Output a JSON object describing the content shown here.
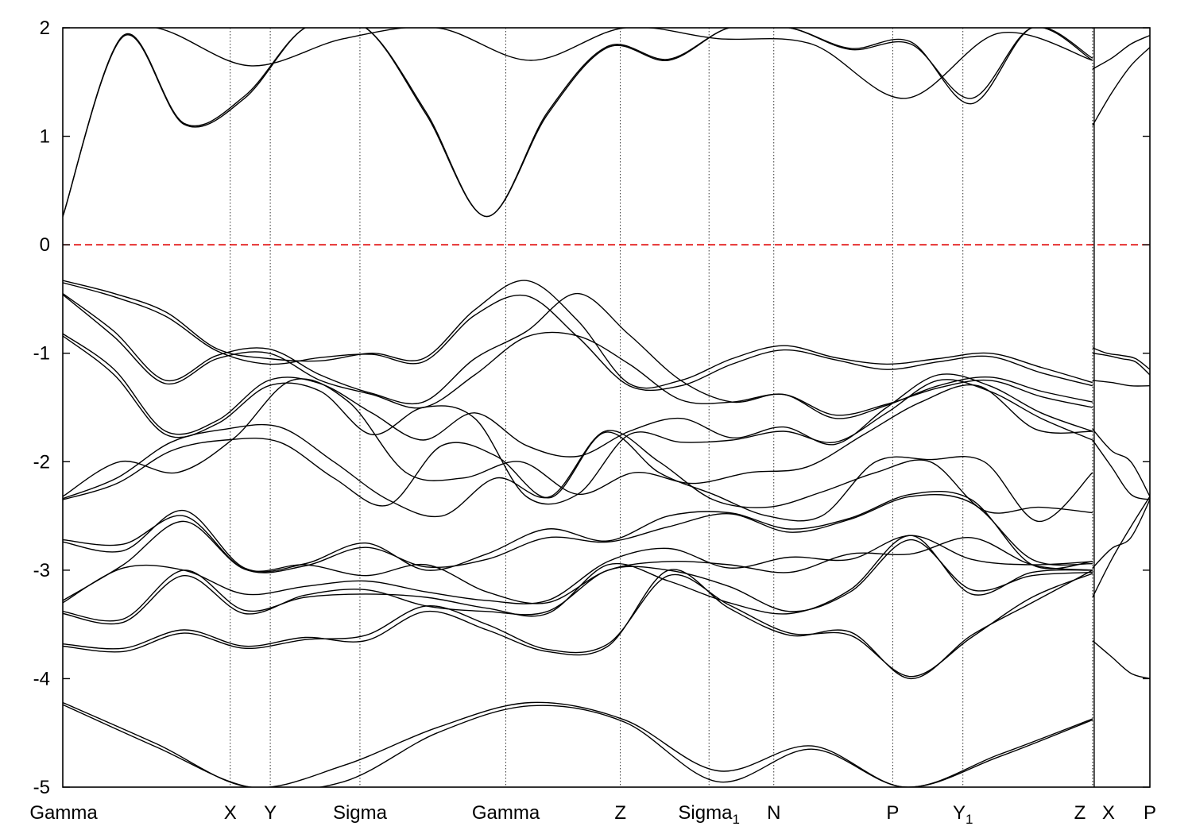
{
  "chart_data": {
    "type": "line",
    "title": "",
    "xlabel": "",
    "ylabel": "",
    "ylim": [
      -5,
      2
    ],
    "xlim": [
      0,
      10.06
    ],
    "y_ticks": [
      2,
      1,
      0,
      -1,
      -2,
      -3,
      -4,
      -5
    ],
    "grid": "vertical dotted lines at high-symmetry points",
    "legend": "none",
    "fermi_level": {
      "y": 0,
      "style": "dashed",
      "color": "#e00000"
    },
    "line_color": "#000000",
    "kpoints": [
      {
        "label": "Gamma",
        "sub": "",
        "x": 0.0
      },
      {
        "label": "X",
        "sub": "",
        "x": 1.55
      },
      {
        "label": "Y",
        "sub": "",
        "x": 1.92
      },
      {
        "label": "Sigma",
        "sub": "",
        "x": 2.75
      },
      {
        "label": "Gamma",
        "sub": "",
        "x": 4.1
      },
      {
        "label": "Z",
        "sub": "",
        "x": 5.16
      },
      {
        "label": "Sigma",
        "sub": "1",
        "x": 5.98
      },
      {
        "label": "N",
        "sub": "",
        "x": 6.58
      },
      {
        "label": "P",
        "sub": "",
        "x": 7.68
      },
      {
        "label": "Y",
        "sub": "1",
        "x": 8.33
      },
      {
        "label": "Z",
        "sub": "",
        "x": 9.53
      },
      {
        "label": "X",
        "sub": "",
        "x": 9.53
      },
      {
        "label": "P",
        "sub": "",
        "x": 10.06
      }
    ],
    "series": [
      {
        "values": [
          0.26,
          1.92,
          1.11,
          1.35,
          2.0,
          2.0,
          1.2,
          0.26,
          1.2,
          1.82,
          1.7,
          2.0,
          2.0,
          1.8,
          1.85,
          1.35,
          2.0,
          1.7
        ]
      },
      {
        "values": [
          0.26,
          1.93,
          1.12,
          1.37,
          2.0,
          2.0,
          1.22,
          0.26,
          1.22,
          1.83,
          1.71,
          2.0,
          2.0,
          1.81,
          1.87,
          1.3,
          2.0,
          1.72
        ]
      },
      {
        "values": [
          2.0,
          2.0,
          1.65,
          1.9,
          2.0,
          1.7,
          2.0,
          1.9,
          1.85,
          1.35,
          1.95,
          1.7
        ]
      },
      {
        "values": [
          -0.33,
          -0.45,
          -0.62,
          -0.96,
          -1.05,
          -1.07,
          -1.0,
          -1.05,
          -0.6,
          -0.33,
          -0.7,
          -1.28,
          -1.25,
          -1.05,
          -0.93,
          -1.04,
          -1.1,
          -1.05,
          -1.0,
          -1.13,
          -1.27
        ]
      },
      {
        "values": [
          -0.35,
          -0.48,
          -0.66,
          -0.98,
          -1.1,
          -1.04,
          -1.01,
          -1.08,
          -0.65,
          -0.47,
          -0.85,
          -1.3,
          -1.3,
          -1.1,
          -0.97,
          -1.06,
          -1.15,
          -1.08,
          -1.03,
          -1.18,
          -1.3
        ]
      },
      {
        "values": [
          -0.45,
          -0.8,
          -1.25,
          -1.02,
          -0.96,
          -1.2,
          -1.37,
          -1.45,
          -1.05,
          -0.8,
          -0.45,
          -0.83,
          -1.25,
          -1.45,
          -1.38,
          -1.6,
          -1.48,
          -1.3,
          -1.22,
          -1.35,
          -1.45
        ]
      },
      {
        "values": [
          -0.46,
          -0.85,
          -1.28,
          -1.05,
          -1.0,
          -1.25,
          -1.38,
          -1.5,
          -1.2,
          -0.85,
          -0.84,
          -1.1,
          -1.43,
          -1.45,
          -1.38,
          -1.57,
          -1.47,
          -1.32,
          -1.25,
          -1.4,
          -1.5
        ]
      },
      {
        "values": [
          -0.82,
          -1.15,
          -1.72,
          -1.62,
          -1.25,
          -1.28,
          -1.55,
          -1.8,
          -1.55,
          -1.85,
          -1.95,
          -1.72,
          -1.6,
          -1.78,
          -1.68,
          -1.84,
          -1.5,
          -1.2,
          -1.3,
          -1.55,
          -1.72
        ]
      },
      {
        "values": [
          -0.84,
          -1.2,
          -1.75,
          -1.65,
          -1.3,
          -1.35,
          -1.75,
          -1.5,
          -1.6,
          -2.32,
          -2.3,
          -1.75,
          -1.82,
          -1.8,
          -1.72,
          -1.82,
          -1.55,
          -1.25,
          -1.35,
          -1.6,
          -1.8
        ]
      },
      {
        "values": [
          -2.32,
          -2.0,
          -2.1,
          -1.78,
          -1.25,
          -1.45,
          -2.1,
          -2.15,
          -2.0,
          -2.3,
          -2.1,
          -2.2,
          -2.1,
          -2.05,
          -1.75,
          -1.45,
          -1.3,
          -1.7,
          -1.72
        ]
      },
      {
        "values": [
          -2.34,
          -2.15,
          -1.82,
          -1.7,
          -1.68,
          -2.0,
          -2.35,
          -2.5,
          -2.15,
          -2.32,
          -1.72,
          -2.0,
          -2.35,
          -2.42,
          -2.28,
          -2.1,
          -2.0,
          -2.45,
          -2.42,
          -2.47
        ]
      },
      {
        "values": [
          -2.35,
          -2.2,
          -1.9,
          -1.8,
          -1.82,
          -2.15,
          -2.4,
          -1.85,
          -1.95,
          -2.33,
          -1.73,
          -2.1,
          -2.3,
          -2.5,
          -2.5,
          -2.0,
          -1.98,
          -2.0,
          -2.55,
          -2.1
        ]
      },
      {
        "values": [
          -2.74,
          -2.82,
          -2.45,
          -2.98,
          -2.94,
          -2.75,
          -3.0,
          -2.85,
          -2.62,
          -2.73,
          -2.5,
          -2.47,
          -2.62,
          -2.52,
          -2.3,
          -2.35,
          -2.95,
          -2.92
        ]
      },
      {
        "values": [
          -2.72,
          -2.76,
          -2.5,
          -2.99,
          -2.96,
          -2.79,
          -2.97,
          -2.9,
          -2.7,
          -2.74,
          -2.6,
          -2.48,
          -2.65,
          -2.53,
          -2.32,
          -2.38,
          -2.9,
          -2.94
        ]
      },
      {
        "values": [
          -3.28,
          -2.95,
          -2.55,
          -2.99,
          -2.95,
          -3.05,
          -2.95,
          -3.2,
          -3.3,
          -3.0,
          -2.92,
          -2.95,
          -3.02,
          -2.85,
          -2.85,
          -2.7,
          -2.95,
          -3.0
        ]
      },
      {
        "values": [
          -3.3,
          -2.98,
          -3.0,
          -3.22,
          -3.15,
          -3.1,
          -3.2,
          -3.28,
          -3.28,
          -2.92,
          -2.8,
          -2.98,
          -2.88,
          -2.9,
          -2.68,
          -2.9,
          -2.95,
          -2.92
        ]
      },
      {
        "values": [
          -3.38,
          -3.45,
          -3.0,
          -3.37,
          -3.25,
          -3.22,
          -3.25,
          -3.35,
          -3.4,
          -2.95,
          -3.1,
          -3.3,
          -3.4,
          -3.18,
          -2.68,
          -3.22,
          -3.02,
          -3.0
        ]
      },
      {
        "values": [
          -3.4,
          -3.48,
          -3.05,
          -3.4,
          -3.23,
          -3.18,
          -3.33,
          -3.38,
          -3.38,
          -3.0,
          -3.0,
          -3.15,
          -3.38,
          -3.2,
          -2.72,
          -3.18,
          -3.05,
          -3.02
        ]
      },
      {
        "values": [
          -3.68,
          -3.72,
          -3.55,
          -3.7,
          -3.62,
          -3.65,
          -3.38,
          -3.55,
          -3.75,
          -3.7,
          -3.0,
          -3.35,
          -3.6,
          -3.57,
          -4.0,
          -3.6,
          -3.3,
          -3.0
        ]
      },
      {
        "values": [
          -3.7,
          -3.75,
          -3.58,
          -3.72,
          -3.64,
          -3.6,
          -3.33,
          -3.5,
          -3.73,
          -3.68,
          -3.05,
          -3.32,
          -3.58,
          -3.6,
          -3.98,
          -3.62,
          -3.25,
          -3.03
        ]
      },
      {
        "values": [
          -4.22,
          -4.6,
          -5.0,
          -4.8,
          -4.45,
          -4.22,
          -4.38,
          -4.85,
          -4.62,
          -5.0,
          -4.7,
          -4.37
        ]
      },
      {
        "values": [
          -4.24,
          -4.63,
          -5.0,
          -4.95,
          -4.5,
          -4.25,
          -4.4,
          -4.95,
          -4.65,
          -5.0,
          -4.72,
          -4.38
        ]
      },
      {
        "values": [
          -1.0,
          -1.02,
          -1.05,
          -1.08,
          -1.2
        ]
      },
      {
        "values": [
          -0.95,
          -1.0,
          -1.02,
          -1.05,
          -1.15
        ]
      },
      {
        "values": [
          -1.25,
          -1.27,
          -1.3,
          -1.3
        ]
      },
      {
        "values": [
          -1.7,
          -1.9,
          -2.0,
          -2.32
        ]
      },
      {
        "values": [
          -1.8,
          -2.05,
          -2.3,
          -2.35
        ]
      },
      {
        "values": [
          -2.98,
          -2.8,
          -2.7,
          -2.35
        ]
      },
      {
        "values": [
          -3.25,
          -2.9,
          -2.6,
          -2.32
        ]
      },
      {
        "values": [
          -3.65,
          -3.8,
          -3.95,
          -4.0
        ]
      },
      {
        "values": [
          1.1,
          1.4,
          1.65,
          1.82
        ]
      },
      {
        "values": [
          1.62,
          1.72,
          1.85,
          1.93
        ]
      }
    ]
  }
}
